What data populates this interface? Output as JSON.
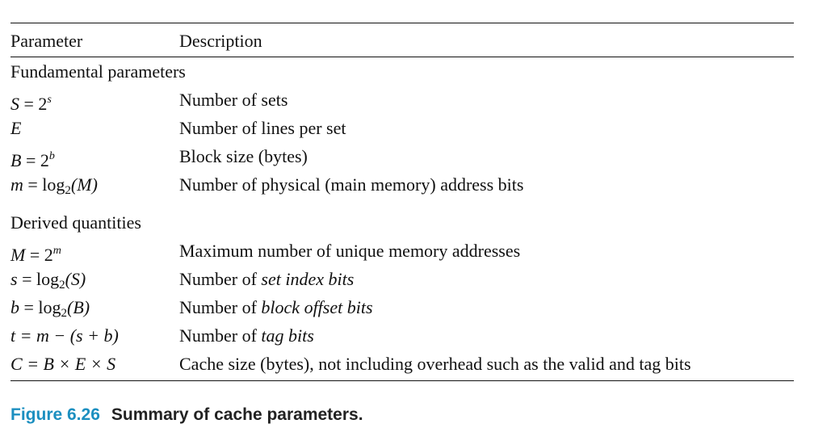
{
  "header": {
    "col_param": "Parameter",
    "col_desc": "Description"
  },
  "groups": [
    {
      "title": "Fundamental parameters",
      "rows": [
        {
          "p1": "S",
          "p_op": " = 2",
          "p_sup": "s",
          "desc": "Number of sets"
        },
        {
          "p1": "E",
          "desc": "Number of lines per set"
        },
        {
          "p1": "B",
          "p_op": " = 2",
          "p_sup": "b",
          "desc": "Block size (bytes)"
        },
        {
          "p1": "m",
          "p_op": " = log",
          "p_sub": "2",
          "p_arg": "(M)",
          "desc": "Number of physical (main memory) address bits"
        }
      ]
    },
    {
      "title": "Derived quantities",
      "rows": [
        {
          "p1": "M",
          "p_op": " = 2",
          "p_sup": "m",
          "desc": "Maximum number of unique memory addresses"
        },
        {
          "p1": "s",
          "p_op": " = log",
          "p_sub": "2",
          "p_arg": "(S)",
          "desc_pre": "Number of ",
          "desc_em": "set index bits"
        },
        {
          "p1": "b",
          "p_op": " = log",
          "p_sub": "2",
          "p_arg": "(B)",
          "desc_pre": "Number of ",
          "desc_em": "block offset bits"
        },
        {
          "p1": "t",
          "p_rest": " = m − (s + b)",
          "desc_pre": "Number of ",
          "desc_em": "tag bits"
        },
        {
          "p1": "C",
          "p_rest": " = B × E × S",
          "desc": "Cache size (bytes), not including overhead such as the valid and tag bits"
        }
      ]
    }
  ],
  "caption": {
    "figure": "Figure 6.26",
    "title": "Summary of cache parameters."
  }
}
